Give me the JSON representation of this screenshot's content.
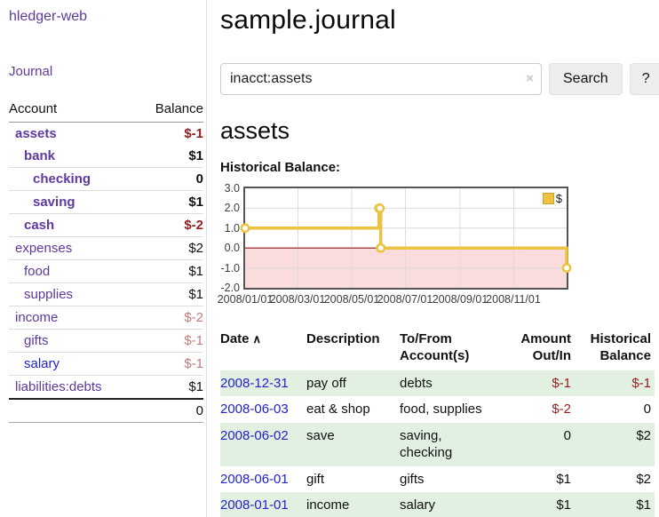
{
  "colors": {
    "link_purple": "#5f3a9e",
    "link_blue": "#2222cc",
    "negative_red": "#941f1f",
    "negative_muted": "#c17c7c",
    "row_stripe_green": "#e2f0e2",
    "chart_line_yellow": "#EDC240",
    "chart_negative_fill": "#fbdcdc",
    "chart_zero_line": "#8b1a1a"
  },
  "sidebar": {
    "app_title": "hledger-web",
    "nav": [
      {
        "label": "Journal"
      }
    ],
    "table": {
      "headers": {
        "account": "Account",
        "balance": "Balance"
      },
      "rows": [
        {
          "account": "assets",
          "balance": "$-1"
        },
        {
          "account": "bank",
          "balance": "$1"
        },
        {
          "account": "checking",
          "balance": "0"
        },
        {
          "account": "saving",
          "balance": "$1"
        },
        {
          "account": "cash",
          "balance": "$-2"
        },
        {
          "account": "expenses",
          "balance": "$2"
        },
        {
          "account": "food",
          "balance": "$1"
        },
        {
          "account": "supplies",
          "balance": "$1"
        },
        {
          "account": "income",
          "balance": "$-2"
        },
        {
          "account": "gifts",
          "balance": "$-1"
        },
        {
          "account": "salary",
          "balance": "$-1"
        },
        {
          "account": "liabilities:debts",
          "balance": "$1"
        }
      ],
      "total": "0"
    }
  },
  "main": {
    "page_title": "sample.journal",
    "search": {
      "value": "inacct:assets",
      "clear_icon": "×",
      "search_button": "Search",
      "help_button": "?"
    },
    "account_heading": "assets",
    "chart_title": "Historical Balance:"
  },
  "chart_data": {
    "type": "line",
    "title": "Historical Balance",
    "series": [
      {
        "name": "$",
        "points": [
          [
            "2008-01-01",
            1
          ],
          [
            "2008-06-01",
            2
          ],
          [
            "2008-06-02",
            2
          ],
          [
            "2008-06-03",
            0
          ],
          [
            "2008-12-31",
            -1
          ]
        ]
      }
    ],
    "x_ticks": [
      "2008/01/01",
      "2008/03/01",
      "2008/05/01",
      "2008/07/01",
      "2008/09/01",
      "2008/11/01"
    ],
    "y_ticks": [
      "3.0",
      "2.0",
      "1.0",
      "0.0",
      "-1.0",
      "-2.0"
    ],
    "xlim": [
      "2008-01-01",
      "2008-12-31"
    ],
    "ylim": [
      -2,
      3
    ],
    "grid": true,
    "legend": {
      "position": "top-right",
      "entries": [
        "$"
      ]
    },
    "style": {
      "line_color": "#EDC240",
      "steps": true,
      "markers": true,
      "negative_region_fill": "#fbdcdc",
      "zero_line_color": "#8b1a1a"
    }
  },
  "transactions": {
    "headers": {
      "date": "Date",
      "sort_icon": "∧",
      "description": "Description",
      "tofrom": "To/From Account(s)",
      "amount": "Amount Out/In",
      "balance": "Historical Balance"
    },
    "rows": [
      {
        "date": "2008-12-31",
        "description": "pay off",
        "tofrom": "debts",
        "amount": "$-1",
        "balance": "$-1"
      },
      {
        "date": "2008-06-03",
        "description": "eat & shop",
        "tofrom": "food, supplies",
        "amount": "$-2",
        "balance": "0"
      },
      {
        "date": "2008-06-02",
        "description": "save",
        "tofrom": "saving, checking",
        "amount": "0",
        "balance": "$2"
      },
      {
        "date": "2008-06-01",
        "description": "gift",
        "tofrom": "gifts",
        "amount": "$1",
        "balance": "$2"
      },
      {
        "date": "2008-01-01",
        "description": "income",
        "tofrom": "salary",
        "amount": "$1",
        "balance": "$1"
      }
    ]
  }
}
